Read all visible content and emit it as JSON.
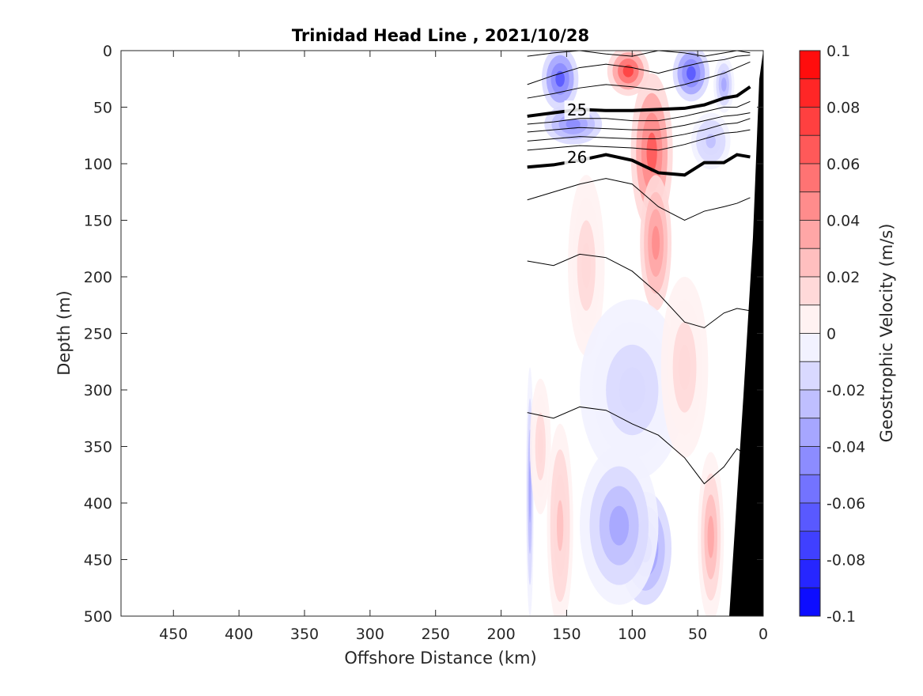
{
  "chart_data": {
    "type": "contour",
    "title": "Trinidad Head Line , 2021/10/28",
    "xlabel": "Offshore Distance (km)",
    "ylabel": "Depth (m)",
    "colorbar_label": "Geostrophic Velocity (m/s)",
    "xlim": [
      490,
      0
    ],
    "ylim": [
      0,
      500
    ],
    "x_reversed": true,
    "y_reversed": true,
    "x_ticks": [
      "450",
      "400",
      "350",
      "300",
      "250",
      "200",
      "150",
      "100",
      "50",
      "0"
    ],
    "x_tick_values": [
      450,
      400,
      350,
      300,
      250,
      200,
      150,
      100,
      50,
      0
    ],
    "y_ticks": [
      "0",
      "50",
      "100",
      "150",
      "200",
      "250",
      "300",
      "350",
      "400",
      "450",
      "500"
    ],
    "y_tick_values": [
      0,
      50,
      100,
      150,
      200,
      250,
      300,
      350,
      400,
      450,
      500
    ],
    "colorbar": {
      "range": [
        -0.1,
        0.1
      ],
      "step": 0.01,
      "ticks": [
        "0.1",
        "0.08",
        "0.06",
        "0.04",
        "0.02",
        "0",
        "-0.02",
        "-0.04",
        "-0.06",
        "-0.08",
        "-0.1"
      ],
      "tick_values": [
        0.1,
        0.08,
        0.06,
        0.04,
        0.02,
        0,
        -0.02,
        -0.04,
        -0.06,
        -0.08,
        -0.1
      ],
      "negative_color": "#0000ff",
      "positive_color": "#ff0000",
      "zero_color": "#ffffff"
    },
    "data_extent_x": [
      180,
      0
    ],
    "bathymetry_color": "#000000",
    "velocity_features": [
      {
        "x": 155,
        "depth": 25,
        "value": -0.06,
        "rx": 14,
        "ry": 28
      },
      {
        "x": 103,
        "depth": 18,
        "value": 0.07,
        "rx": 16,
        "ry": 22
      },
      {
        "x": 85,
        "depth": 90,
        "value": 0.06,
        "rx": 16,
        "ry": 70
      },
      {
        "x": 82,
        "depth": 170,
        "value": 0.04,
        "rx": 12,
        "ry": 60
      },
      {
        "x": 55,
        "depth": 20,
        "value": -0.06,
        "rx": 14,
        "ry": 25
      },
      {
        "x": 30,
        "depth": 30,
        "value": -0.03,
        "rx": 8,
        "ry": 25
      },
      {
        "x": 145,
        "depth": 65,
        "value": -0.04,
        "rx": 22,
        "ry": 18
      },
      {
        "x": 40,
        "depth": 80,
        "value": -0.02,
        "rx": 15,
        "ry": 25
      },
      {
        "x": 135,
        "depth": 190,
        "value": 0.015,
        "rx": 14,
        "ry": 80
      },
      {
        "x": 100,
        "depth": 300,
        "value": -0.015,
        "rx": 40,
        "ry": 80
      },
      {
        "x": 90,
        "depth": 440,
        "value": -0.05,
        "rx": 20,
        "ry": 50
      },
      {
        "x": 110,
        "depth": 420,
        "value": -0.03,
        "rx": 30,
        "ry": 70
      },
      {
        "x": 155,
        "depth": 420,
        "value": 0.02,
        "rx": 10,
        "ry": 90
      },
      {
        "x": 40,
        "depth": 430,
        "value": 0.03,
        "rx": 10,
        "ry": 75
      },
      {
        "x": 60,
        "depth": 280,
        "value": 0.015,
        "rx": 18,
        "ry": 80
      },
      {
        "x": 178,
        "depth": 390,
        "value": -0.03,
        "rx": 3,
        "ry": 110
      },
      {
        "x": 170,
        "depth": 350,
        "value": 0.015,
        "rx": 8,
        "ry": 60
      }
    ],
    "density_contours": [
      {
        "label": "",
        "bold": false,
        "depth": [
          5,
          2,
          0,
          3,
          5,
          0,
          2,
          5,
          2,
          0,
          2
        ],
        "x": [
          180,
          160,
          140,
          120,
          100,
          80,
          60,
          45,
          30,
          20,
          10
        ]
      },
      {
        "label": "",
        "bold": false,
        "depth": [
          30,
          22,
          15,
          12,
          15,
          20,
          14,
          10,
          8,
          5,
          4
        ]
      },
      {
        "label": "",
        "bold": false,
        "depth": [
          42,
          38,
          33,
          30,
          32,
          35,
          30,
          25,
          20,
          15,
          10
        ]
      },
      {
        "label": "25",
        "bold": true,
        "depth": [
          58,
          55,
          52,
          53,
          53,
          52,
          51,
          48,
          42,
          40,
          32
        ]
      },
      {
        "label": "",
        "bold": false,
        "depth": [
          65,
          63,
          60,
          60,
          62,
          62,
          58,
          54,
          50,
          50,
          45
        ]
      },
      {
        "label": "",
        "bold": false,
        "depth": [
          72,
          70,
          68,
          69,
          70,
          70,
          66,
          62,
          58,
          57,
          55
        ]
      },
      {
        "label": "",
        "bold": false,
        "depth": [
          80,
          78,
          76,
          77,
          78,
          78,
          74,
          70,
          65,
          64,
          60
        ]
      },
      {
        "label": "",
        "bold": false,
        "depth": [
          88,
          86,
          84,
          85,
          86,
          88,
          83,
          78,
          73,
          72,
          70
        ]
      },
      {
        "label": "26",
        "bold": true,
        "depth": [
          103,
          101,
          97,
          92,
          97,
          108,
          110,
          99,
          99,
          92,
          94
        ]
      },
      {
        "label": "",
        "bold": false,
        "depth": [
          132,
          125,
          118,
          113,
          118,
          138,
          150,
          142,
          138,
          135,
          130
        ]
      },
      {
        "label": "",
        "bold": false,
        "depth": [
          186,
          190,
          180,
          183,
          195,
          215,
          240,
          245,
          232,
          228,
          230
        ]
      },
      {
        "label": "",
        "bold": false,
        "depth": [
          320,
          325,
          315,
          318,
          330,
          340,
          360,
          383,
          368,
          352,
          360
        ]
      }
    ]
  }
}
